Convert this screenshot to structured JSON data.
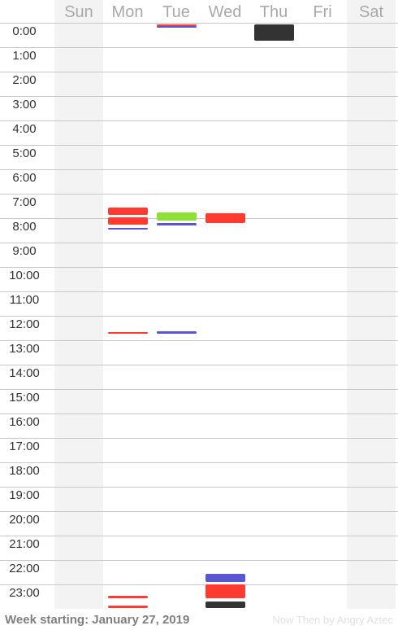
{
  "days": [
    "Sun",
    "Mon",
    "Tue",
    "Wed",
    "Thu",
    "Fri",
    "Sat"
  ],
  "hours": [
    "0:00",
    "1:00",
    "2:00",
    "3:00",
    "4:00",
    "5:00",
    "6:00",
    "7:00",
    "8:00",
    "9:00",
    "10:00",
    "11:00",
    "12:00",
    "13:00",
    "14:00",
    "15:00",
    "16:00",
    "17:00",
    "18:00",
    "19:00",
    "20:00",
    "21:00",
    "22:00",
    "23:00"
  ],
  "colors": {
    "red": "#ff3b2f",
    "blue": "#5856d6",
    "green": "#8fe234",
    "dark": "#333333"
  },
  "events": [
    {
      "day": 1,
      "start": 7.55,
      "end": 7.85,
      "color": "red"
    },
    {
      "day": 1,
      "start": 7.95,
      "end": 8.25,
      "color": "red"
    },
    {
      "day": 1,
      "start": 8.4,
      "end": 8.47,
      "color": "blue"
    },
    {
      "day": 1,
      "start": 12.67,
      "end": 12.73,
      "color": "red"
    },
    {
      "day": 1,
      "start": 23.45,
      "end": 23.55,
      "color": "red"
    },
    {
      "day": 1,
      "start": 23.85,
      "end": 23.95,
      "color": "red"
    },
    {
      "day": 2,
      "start": 0.05,
      "end": 0.12,
      "color": "red"
    },
    {
      "day": 2,
      "start": 0.12,
      "end": 0.18,
      "color": "blue"
    },
    {
      "day": 2,
      "start": 7.75,
      "end": 8.1,
      "color": "green"
    },
    {
      "day": 2,
      "start": 8.2,
      "end": 8.3,
      "color": "blue"
    },
    {
      "day": 2,
      "start": 12.62,
      "end": 12.72,
      "color": "blue"
    },
    {
      "day": 3,
      "start": 7.8,
      "end": 8.2,
      "color": "red"
    },
    {
      "day": 3,
      "start": 22.55,
      "end": 22.9,
      "color": "blue"
    },
    {
      "day": 3,
      "start": 23.0,
      "end": 23.55,
      "color": "red"
    },
    {
      "day": 3,
      "start": 23.7,
      "end": 23.97,
      "color": "dark"
    },
    {
      "day": 4,
      "start": 0.05,
      "end": 0.72,
      "color": "dark"
    }
  ],
  "footer": {
    "week_label": "Week starting: January 27, 2019",
    "credit": "Now Then by Angry Aztec"
  }
}
